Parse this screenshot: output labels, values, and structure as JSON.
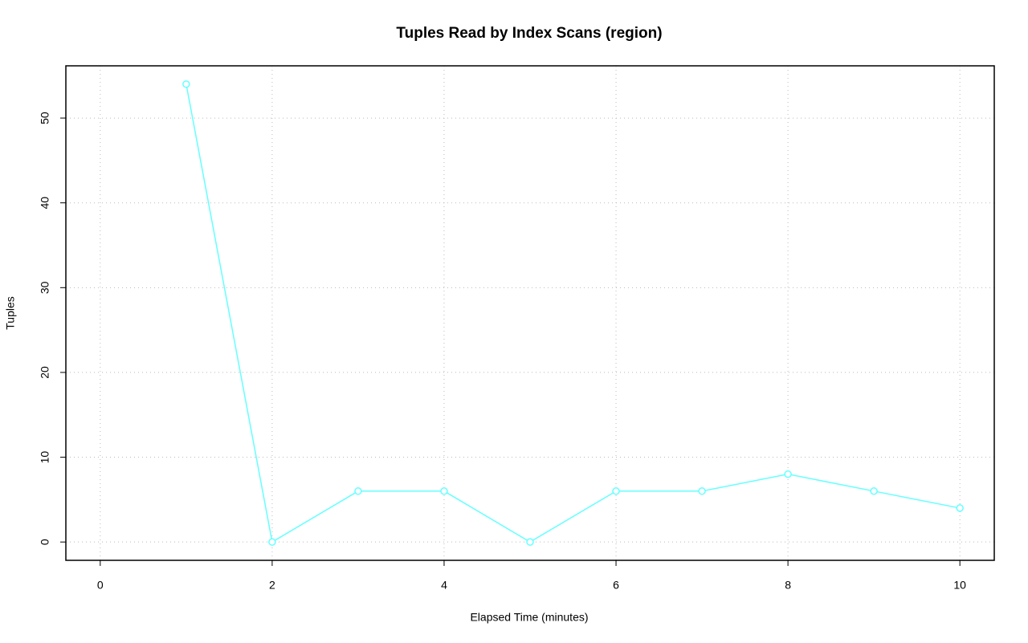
{
  "chart_data": {
    "type": "line",
    "title": "Tuples Read by Index Scans (region)",
    "x_label": "Elapsed Time (minutes)",
    "y_label": "Tuples",
    "x": [
      1,
      2,
      3,
      4,
      5,
      6,
      7,
      8,
      9,
      10
    ],
    "values": [
      54,
      0,
      6,
      6,
      0,
      6,
      6,
      8,
      6,
      4
    ],
    "color": "#66ffff",
    "xlim": [
      -0.4,
      10.4
    ],
    "xticks": [
      0,
      2,
      4,
      6,
      8,
      10
    ],
    "ylim": [
      -2.16,
      56.16
    ],
    "yticks": [
      0,
      10,
      20,
      30,
      40,
      50
    ],
    "grid": true
  }
}
